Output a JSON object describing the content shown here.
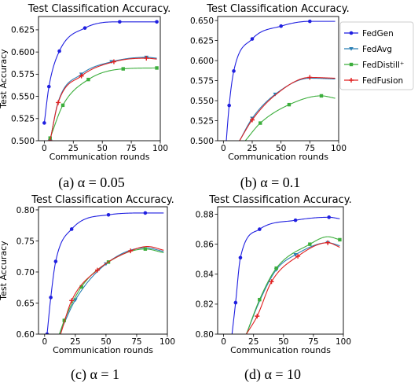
{
  "colors": {
    "FedGen": "#1f1fe0",
    "FedAvg": "#2a7fb4",
    "FedDistill+": "#3cae3c",
    "FedFusion": "#e02020"
  },
  "legend": {
    "placement": "top-right",
    "entries": [
      "FedGen",
      "FedAvg",
      "FedDistill⁺",
      "FedFusion"
    ]
  },
  "chart_data": [
    {
      "type": "line",
      "title": "Test Classification Accuracy.",
      "caption": "(a) α = 0.05",
      "xlabel": "Communication rounds",
      "ylabel": "Test Accuracy",
      "xlim": [
        -5,
        100
      ],
      "ylim": [
        0.5,
        0.64
      ],
      "xticks": [
        0,
        25,
        50,
        75,
        100
      ],
      "xtick_labels": [
        "0",
        "25",
        "50",
        "75",
        "100"
      ],
      "yticks": [
        0.5,
        0.525,
        0.55,
        0.575,
        0.6,
        0.625
      ],
      "ytick_labels": [
        "0.500",
        "0.525",
        "0.550",
        "0.575",
        "0.600",
        "0.625"
      ],
      "series": [
        {
          "name": "FedGen",
          "x": [
            0,
            4,
            13,
            35,
            65,
            97
          ],
          "y": [
            0.52,
            0.561,
            0.601,
            0.627,
            0.634,
            0.634
          ]
        },
        {
          "name": "FedAvg",
          "x": [
            5,
            12,
            32,
            58,
            88,
            97
          ],
          "y": [
            0.5,
            0.544,
            0.575,
            0.589,
            0.594,
            0.593
          ]
        },
        {
          "name": "FedDistill+",
          "x": [
            5,
            16,
            38,
            68,
            97
          ],
          "y": [
            0.503,
            0.54,
            0.569,
            0.581,
            0.582
          ]
        },
        {
          "name": "FedFusion",
          "x": [
            5,
            12,
            32,
            60,
            88,
            97
          ],
          "y": [
            0.5,
            0.543,
            0.573,
            0.589,
            0.593,
            0.592
          ]
        }
      ],
      "markers": {
        "FedGen": [
          0,
          4,
          13,
          35,
          65,
          97
        ],
        "FedAvg": [
          5,
          32,
          58,
          88
        ],
        "FedDistill+": [
          5,
          16,
          38,
          68,
          97
        ],
        "FedFusion": [
          5,
          12,
          32,
          60,
          88
        ]
      },
      "grid": false
    },
    {
      "type": "line",
      "title": "Test Classification Accuracy.",
      "caption": "(b) α = 0.1",
      "xlabel": "Communication rounds",
      "ylabel": "",
      "xlim": [
        -5,
        100
      ],
      "ylim": [
        0.5,
        0.655
      ],
      "xticks": [
        0,
        25,
        50,
        75,
        100
      ],
      "xtick_labels": [
        "0",
        "25",
        "50",
        "75",
        "100"
      ],
      "yticks": [
        0.5,
        0.525,
        0.55,
        0.575,
        0.6,
        0.625,
        0.65
      ],
      "ytick_labels": [
        "0.500",
        "0.525",
        "0.550",
        "0.575",
        "0.600",
        "0.625",
        "0.650"
      ],
      "series": [
        {
          "name": "FedGen",
          "x": [
            0,
            5,
            9,
            25,
            50,
            75,
            97
          ],
          "y": [
            0.45,
            0.544,
            0.587,
            0.627,
            0.643,
            0.649,
            0.649
          ]
        },
        {
          "name": "FedAvg",
          "x": [
            14,
            25,
            45,
            75,
            97
          ],
          "y": [
            0.5,
            0.528,
            0.558,
            0.578,
            0.577
          ]
        },
        {
          "name": "FedDistill+",
          "x": [
            19,
            32,
            57,
            85,
            97
          ],
          "y": [
            0.5,
            0.522,
            0.545,
            0.556,
            0.553
          ]
        },
        {
          "name": "FedFusion",
          "x": [
            14,
            25,
            45,
            75,
            97
          ],
          "y": [
            0.5,
            0.526,
            0.557,
            0.579,
            0.578
          ]
        }
      ],
      "markers": {
        "FedGen": [
          5,
          9,
          25,
          50,
          75
        ],
        "FedAvg": [
          25,
          45
        ],
        "FedDistill+": [
          32,
          57,
          85
        ],
        "FedFusion": [
          25,
          75
        ]
      },
      "grid": false
    },
    {
      "type": "line",
      "title": "Test Classification Accuracy.",
      "caption": "(c) α = 1",
      "xlabel": "Communication rounds",
      "ylabel": "Test Accuracy",
      "xlim": [
        -5,
        100
      ],
      "ylim": [
        0.6,
        0.805
      ],
      "xticks": [
        0,
        25,
        50,
        75,
        100
      ],
      "xtick_labels": [
        "0",
        "25",
        "50",
        "75",
        "100"
      ],
      "yticks": [
        0.6,
        0.65,
        0.7,
        0.75,
        0.8
      ],
      "ytick_labels": [
        "0.60",
        "0.65",
        "0.70",
        "0.75",
        "0.80"
      ],
      "series": [
        {
          "name": "FedGen",
          "x": [
            2,
            5,
            9,
            22,
            52,
            82,
            97
          ],
          "y": [
            0.6,
            0.659,
            0.717,
            0.769,
            0.792,
            0.795,
            0.795
          ]
        },
        {
          "name": "FedAvg",
          "x": [
            12,
            25,
            50,
            82,
            97
          ],
          "y": [
            0.6,
            0.655,
            0.713,
            0.739,
            0.733
          ]
        },
        {
          "name": "FedDistill+",
          "x": [
            12,
            16,
            30,
            52,
            82,
            97
          ],
          "y": [
            0.6,
            0.622,
            0.676,
            0.716,
            0.737,
            0.731
          ]
        },
        {
          "name": "FedFusion",
          "x": [
            13,
            22,
            43,
            70,
            84,
            97
          ],
          "y": [
            0.6,
            0.654,
            0.703,
            0.734,
            0.741,
            0.735
          ]
        }
      ],
      "markers": {
        "FedGen": [
          2,
          5,
          9,
          22,
          52,
          82
        ],
        "FedAvg": [
          25,
          50
        ],
        "FedDistill+": [
          16,
          30,
          52,
          82
        ],
        "FedFusion": [
          22,
          43,
          70
        ]
      },
      "grid": false
    },
    {
      "type": "line",
      "title": "Test Classification Accuracy.",
      "caption": "(d) α = 10",
      "xlabel": "Communication rounds",
      "ylabel": "",
      "xlim": [
        -5,
        100
      ],
      "ylim": [
        0.8,
        0.885
      ],
      "xticks": [
        0,
        25,
        50,
        75,
        100
      ],
      "xtick_labels": [
        "0",
        "25",
        "50",
        "75",
        "100"
      ],
      "yticks": [
        0.8,
        0.82,
        0.84,
        0.86,
        0.88
      ],
      "ytick_labels": [
        "0.80",
        "0.82",
        "0.84",
        "0.86",
        "0.88"
      ],
      "series": [
        {
          "name": "FedGen",
          "x": [
            7,
            10,
            14,
            30,
            60,
            88,
            97
          ],
          "y": [
            0.8,
            0.821,
            0.851,
            0.87,
            0.876,
            0.878,
            0.877
          ]
        },
        {
          "name": "FedAvg",
          "x": [
            19,
            30,
            44,
            60,
            87,
            97
          ],
          "y": [
            0.8,
            0.822,
            0.843,
            0.853,
            0.861,
            0.859
          ]
        },
        {
          "name": "FedDistill+",
          "x": [
            19,
            30,
            44,
            72,
            87,
            97
          ],
          "y": [
            0.8,
            0.823,
            0.844,
            0.86,
            0.865,
            0.863
          ]
        },
        {
          "name": "FedFusion",
          "x": [
            19,
            28,
            40,
            62,
            87,
            97
          ],
          "y": [
            0.8,
            0.812,
            0.835,
            0.852,
            0.861,
            0.858
          ]
        }
      ],
      "markers": {
        "FedGen": [
          10,
          14,
          30,
          60,
          88
        ],
        "FedAvg": [
          44,
          60,
          87
        ],
        "FedDistill+": [
          30,
          44,
          72,
          97
        ],
        "FedFusion": [
          28,
          40,
          62,
          87
        ]
      },
      "grid": false
    }
  ]
}
